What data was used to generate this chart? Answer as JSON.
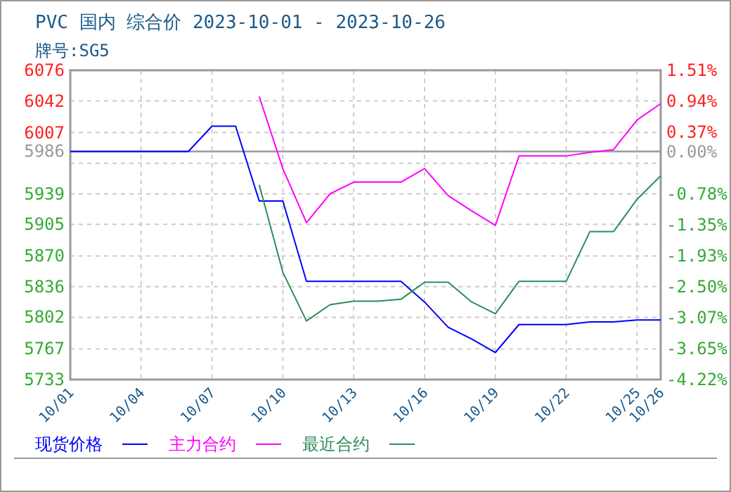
{
  "chart_data": {
    "type": "line",
    "title": "PVC 国内 综合价 2023-10-01 - 2023-10-26",
    "subtitle": "牌号:SG5",
    "x": [
      "--10-01",
      "--10-02",
      "--10-03",
      "--10-04",
      "--10-05",
      "--10-06",
      "--10-07",
      "--10-08",
      "--10-09",
      "--10-10",
      "--10-11",
      "--10-12",
      "--10-13",
      "--10-14",
      "--10-15",
      "--10-16",
      "--10-17",
      "--10-18",
      "--10-19",
      "--10-20",
      "--10-21",
      "--10-22",
      "--10-23",
      "--10-24",
      "--10-25",
      "--10-26"
    ],
    "series": [
      {
        "name": "现货价格",
        "color": "#0000ff",
        "values": [
          5986,
          5986,
          5986,
          5986,
          5986,
          5986,
          6014,
          6014,
          5931,
          5931,
          5842,
          5842,
          5842,
          5842,
          5842,
          5819,
          5791,
          5778,
          5763,
          5794,
          5794,
          5794,
          5797,
          5797,
          5799,
          5799
        ]
      },
      {
        "name": "主力合约",
        "color": "#ff00ff",
        "values": [
          null,
          null,
          null,
          null,
          null,
          null,
          null,
          null,
          6047,
          5967,
          5907,
          5939,
          5952,
          5952,
          5952,
          5967,
          5937,
          5920,
          5904,
          5981,
          5981,
          5981,
          5985,
          5988,
          6021,
          6039
        ]
      },
      {
        "name": "最近合约",
        "color": "#2e8b57",
        "values": [
          null,
          null,
          null,
          null,
          null,
          null,
          null,
          null,
          5949,
          5852,
          5798,
          5816,
          5820,
          5820,
          5822,
          5841,
          5841,
          5819,
          5806,
          5842,
          5842,
          5842,
          5897,
          5897,
          5933,
          5959
        ]
      }
    ],
    "xlim": [
      "--10-01",
      "--10-26"
    ],
    "xticks": [
      {
        "value": "--10-01",
        "label": "10/01"
      },
      {
        "value": "--10-04",
        "label": "10/04"
      },
      {
        "value": "--10-07",
        "label": "10/07"
      },
      {
        "value": "--10-10",
        "label": "10/10"
      },
      {
        "value": "--10-13",
        "label": "10/13"
      },
      {
        "value": "--10-16",
        "label": "10/16"
      },
      {
        "value": "--10-19",
        "label": "10/19"
      },
      {
        "value": "--10-22",
        "label": "10/22"
      },
      {
        "value": "--10-25",
        "label": "10/25"
      },
      {
        "value": "--10-26",
        "label": "10/26"
      }
    ],
    "ylim": [
      5733,
      6076
    ],
    "yticks": [
      6076,
      6042,
      6007,
      {
        "value": 5973,
        "label": null
      },
      5939,
      5905,
      5870,
      5836,
      5802,
      5767,
      5733
    ],
    "y2lim": [
      -4.22,
      1.51
    ],
    "y2ticks": [
      {
        "value": 1.51,
        "label": "1.51%"
      },
      {
        "value": 0.94,
        "label": "0.94%"
      },
      {
        "value": 0.37,
        "label": "0.37%"
      },
      {
        "value": 0,
        "label": "0.00%"
      },
      {
        "value": -0.78,
        "label": "-0.78%"
      },
      {
        "value": -1.35,
        "label": "-1.35%"
      },
      {
        "value": -1.93,
        "label": "-1.93%"
      },
      {
        "value": -2.5,
        "label": "-2.50%"
      },
      {
        "value": -3.07,
        "label": "-3.07%"
      },
      {
        "value": -3.65,
        "label": "-3.65%"
      },
      {
        "value": -4.22,
        "label": "-4.22%"
      }
    ],
    "ref_lines": [
      {
        "axis": "y",
        "value": 5986,
        "label": "5986",
        "color": "#999999"
      }
    ],
    "grid": true,
    "legend": "bottom",
    "line_style": "solid"
  }
}
